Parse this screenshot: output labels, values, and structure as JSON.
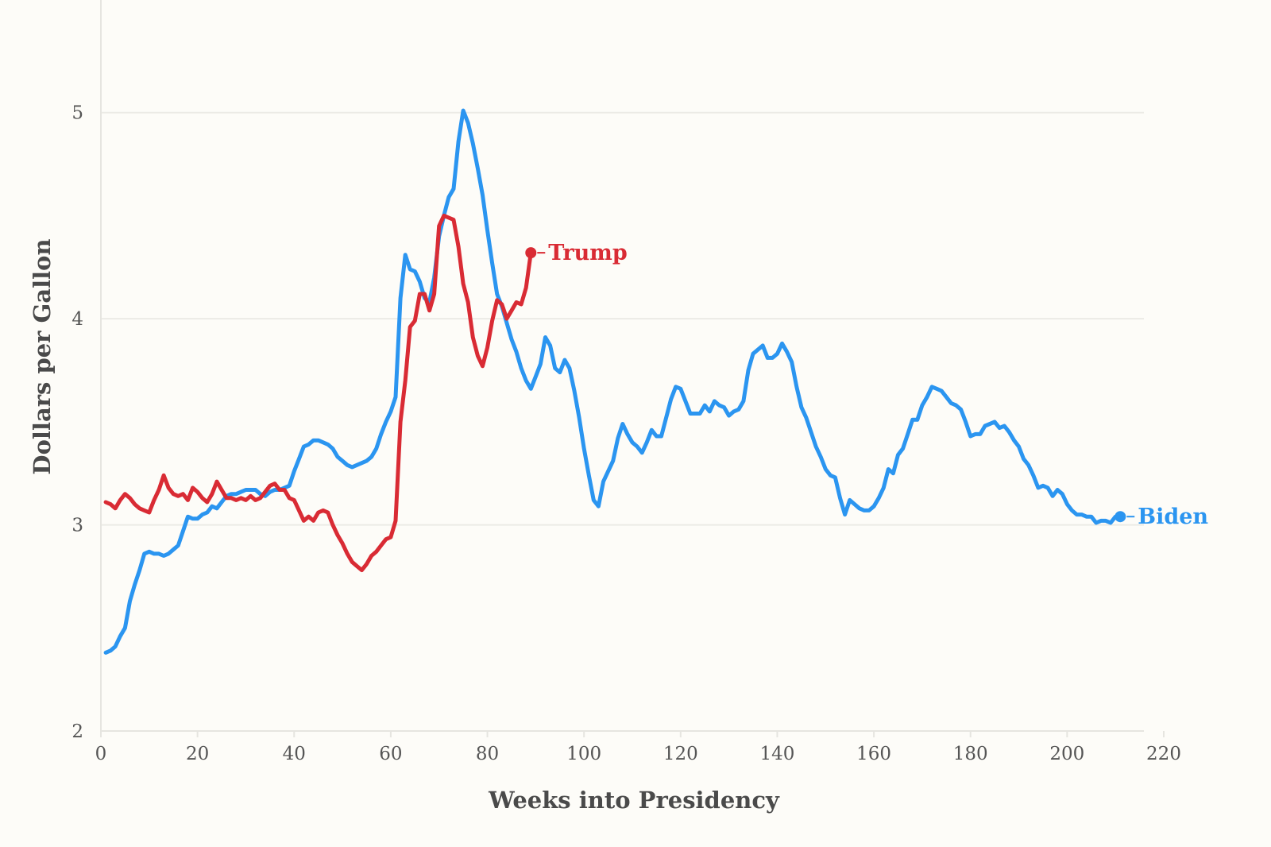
{
  "chart_data": {
    "type": "line",
    "title": "",
    "xlabel": "Weeks into Presidency",
    "ylabel": "Dollars per Gallon",
    "xlim": [
      0,
      220
    ],
    "ylim": [
      2,
      5.5
    ],
    "xticks": [
      0,
      20,
      40,
      60,
      80,
      100,
      120,
      140,
      160,
      180,
      200,
      220
    ],
    "yticks": [
      2,
      3,
      4,
      5
    ],
    "grid": "horizontal",
    "legend": "direct-labels",
    "series": [
      {
        "name": "Trump",
        "color": "#d92b34",
        "points": [
          [
            1,
            3.11
          ],
          [
            2,
            3.1
          ],
          [
            3,
            3.08
          ],
          [
            4,
            3.12
          ],
          [
            5,
            3.15
          ],
          [
            6,
            3.13
          ],
          [
            7,
            3.1
          ],
          [
            8,
            3.08
          ],
          [
            9,
            3.07
          ],
          [
            10,
            3.06
          ],
          [
            11,
            3.12
          ],
          [
            12,
            3.17
          ],
          [
            13,
            3.24
          ],
          [
            14,
            3.18
          ],
          [
            15,
            3.15
          ],
          [
            16,
            3.14
          ],
          [
            17,
            3.15
          ],
          [
            18,
            3.12
          ],
          [
            19,
            3.18
          ],
          [
            20,
            3.16
          ],
          [
            21,
            3.13
          ],
          [
            22,
            3.11
          ],
          [
            23,
            3.15
          ],
          [
            24,
            3.21
          ],
          [
            25,
            3.17
          ],
          [
            26,
            3.13
          ],
          [
            27,
            3.13
          ],
          [
            28,
            3.12
          ],
          [
            29,
            3.13
          ],
          [
            30,
            3.12
          ],
          [
            31,
            3.14
          ],
          [
            32,
            3.12
          ],
          [
            33,
            3.13
          ],
          [
            34,
            3.16
          ],
          [
            35,
            3.19
          ],
          [
            36,
            3.2
          ],
          [
            37,
            3.17
          ],
          [
            38,
            3.17
          ],
          [
            39,
            3.13
          ],
          [
            40,
            3.12
          ],
          [
            41,
            3.07
          ],
          [
            42,
            3.02
          ],
          [
            43,
            3.04
          ],
          [
            44,
            3.02
          ],
          [
            45,
            3.06
          ],
          [
            46,
            3.07
          ],
          [
            47,
            3.06
          ],
          [
            48,
            3.0
          ],
          [
            49,
            2.95
          ],
          [
            50,
            2.91
          ],
          [
            51,
            2.86
          ],
          [
            52,
            2.82
          ],
          [
            53,
            2.8
          ],
          [
            54,
            2.78
          ],
          [
            55,
            2.81
          ],
          [
            56,
            2.85
          ],
          [
            57,
            2.87
          ],
          [
            58,
            2.9
          ],
          [
            59,
            2.93
          ],
          [
            60,
            2.94
          ],
          [
            61,
            3.02
          ],
          [
            62,
            3.5
          ],
          [
            63,
            3.7
          ],
          [
            64,
            3.96
          ],
          [
            65,
            3.99
          ],
          [
            66,
            4.12
          ],
          [
            67,
            4.12
          ],
          [
            68,
            4.04
          ],
          [
            69,
            4.12
          ],
          [
            70,
            4.45
          ],
          [
            71,
            4.5
          ],
          [
            72,
            4.49
          ],
          [
            73,
            4.48
          ],
          [
            74,
            4.35
          ],
          [
            75,
            4.17
          ],
          [
            76,
            4.08
          ],
          [
            77,
            3.91
          ],
          [
            78,
            3.82
          ],
          [
            79,
            3.77
          ],
          [
            80,
            3.86
          ],
          [
            81,
            3.99
          ],
          [
            82,
            4.09
          ],
          [
            83,
            4.07
          ],
          [
            84,
            4.0
          ],
          [
            85,
            4.04
          ],
          [
            86,
            4.08
          ],
          [
            87,
            4.07
          ],
          [
            88,
            4.15
          ],
          [
            89,
            4.32
          ]
        ]
      },
      {
        "name": "Biden",
        "color": "#2b95f0",
        "points": [
          [
            1,
            2.38
          ],
          [
            2,
            2.39
          ],
          [
            3,
            2.41
          ],
          [
            4,
            2.46
          ],
          [
            5,
            2.5
          ],
          [
            6,
            2.63
          ],
          [
            7,
            2.71
          ],
          [
            8,
            2.78
          ],
          [
            9,
            2.86
          ],
          [
            10,
            2.87
          ],
          [
            11,
            2.86
          ],
          [
            12,
            2.86
          ],
          [
            13,
            2.85
          ],
          [
            14,
            2.86
          ],
          [
            15,
            2.88
          ],
          [
            16,
            2.9
          ],
          [
            17,
            2.97
          ],
          [
            18,
            3.04
          ],
          [
            19,
            3.03
          ],
          [
            20,
            3.03
          ],
          [
            21,
            3.05
          ],
          [
            22,
            3.06
          ],
          [
            23,
            3.09
          ],
          [
            24,
            3.08
          ],
          [
            25,
            3.11
          ],
          [
            26,
            3.14
          ],
          [
            27,
            3.15
          ],
          [
            28,
            3.15
          ],
          [
            29,
            3.16
          ],
          [
            30,
            3.17
          ],
          [
            31,
            3.17
          ],
          [
            32,
            3.17
          ],
          [
            33,
            3.15
          ],
          [
            34,
            3.14
          ],
          [
            35,
            3.16
          ],
          [
            36,
            3.17
          ],
          [
            37,
            3.17
          ],
          [
            38,
            3.18
          ],
          [
            39,
            3.19
          ],
          [
            40,
            3.26
          ],
          [
            41,
            3.32
          ],
          [
            42,
            3.38
          ],
          [
            43,
            3.39
          ],
          [
            44,
            3.41
          ],
          [
            45,
            3.41
          ],
          [
            46,
            3.4
          ],
          [
            47,
            3.39
          ],
          [
            48,
            3.37
          ],
          [
            49,
            3.33
          ],
          [
            50,
            3.31
          ],
          [
            51,
            3.29
          ],
          [
            52,
            3.28
          ],
          [
            53,
            3.29
          ],
          [
            54,
            3.3
          ],
          [
            55,
            3.31
          ],
          [
            56,
            3.33
          ],
          [
            57,
            3.37
          ],
          [
            58,
            3.44
          ],
          [
            59,
            3.5
          ],
          [
            60,
            3.55
          ],
          [
            61,
            3.62
          ],
          [
            62,
            4.1
          ],
          [
            63,
            4.31
          ],
          [
            64,
            4.24
          ],
          [
            65,
            4.23
          ],
          [
            66,
            4.18
          ],
          [
            67,
            4.1
          ],
          [
            68,
            4.08
          ],
          [
            69,
            4.2
          ],
          [
            70,
            4.4
          ],
          [
            71,
            4.5
          ],
          [
            72,
            4.59
          ],
          [
            73,
            4.63
          ],
          [
            74,
            4.86
          ],
          [
            75,
            5.01
          ],
          [
            76,
            4.95
          ],
          [
            77,
            4.85
          ],
          [
            78,
            4.73
          ],
          [
            79,
            4.6
          ],
          [
            80,
            4.43
          ],
          [
            81,
            4.27
          ],
          [
            82,
            4.12
          ],
          [
            83,
            4.06
          ],
          [
            84,
            3.98
          ],
          [
            85,
            3.9
          ],
          [
            86,
            3.84
          ],
          [
            87,
            3.76
          ],
          [
            88,
            3.7
          ],
          [
            89,
            3.66
          ],
          [
            90,
            3.72
          ],
          [
            91,
            3.78
          ],
          [
            92,
            3.91
          ],
          [
            93,
            3.87
          ],
          [
            94,
            3.76
          ],
          [
            95,
            3.74
          ],
          [
            96,
            3.8
          ],
          [
            97,
            3.76
          ],
          [
            98,
            3.65
          ],
          [
            99,
            3.52
          ],
          [
            100,
            3.37
          ],
          [
            101,
            3.24
          ],
          [
            102,
            3.12
          ],
          [
            103,
            3.09
          ],
          [
            104,
            3.21
          ],
          [
            105,
            3.26
          ],
          [
            106,
            3.31
          ],
          [
            107,
            3.42
          ],
          [
            108,
            3.49
          ],
          [
            109,
            3.44
          ],
          [
            110,
            3.4
          ],
          [
            111,
            3.38
          ],
          [
            112,
            3.35
          ],
          [
            113,
            3.4
          ],
          [
            114,
            3.46
          ],
          [
            115,
            3.43
          ],
          [
            116,
            3.43
          ],
          [
            117,
            3.52
          ],
          [
            118,
            3.61
          ],
          [
            119,
            3.67
          ],
          [
            120,
            3.66
          ],
          [
            121,
            3.6
          ],
          [
            122,
            3.54
          ],
          [
            123,
            3.54
          ],
          [
            124,
            3.54
          ],
          [
            125,
            3.58
          ],
          [
            126,
            3.55
          ],
          [
            127,
            3.6
          ],
          [
            128,
            3.58
          ],
          [
            129,
            3.57
          ],
          [
            130,
            3.53
          ],
          [
            131,
            3.55
          ],
          [
            132,
            3.56
          ],
          [
            133,
            3.6
          ],
          [
            134,
            3.75
          ],
          [
            135,
            3.83
          ],
          [
            136,
            3.85
          ],
          [
            137,
            3.87
          ],
          [
            138,
            3.81
          ],
          [
            139,
            3.81
          ],
          [
            140,
            3.83
          ],
          [
            141,
            3.88
          ],
          [
            142,
            3.84
          ],
          [
            143,
            3.79
          ],
          [
            144,
            3.67
          ],
          [
            145,
            3.57
          ],
          [
            146,
            3.52
          ],
          [
            147,
            3.45
          ],
          [
            148,
            3.38
          ],
          [
            149,
            3.33
          ],
          [
            150,
            3.27
          ],
          [
            151,
            3.24
          ],
          [
            152,
            3.23
          ],
          [
            153,
            3.13
          ],
          [
            154,
            3.05
          ],
          [
            155,
            3.12
          ],
          [
            156,
            3.1
          ],
          [
            157,
            3.08
          ],
          [
            158,
            3.07
          ],
          [
            159,
            3.07
          ],
          [
            160,
            3.09
          ],
          [
            161,
            3.13
          ],
          [
            162,
            3.18
          ],
          [
            163,
            3.27
          ],
          [
            164,
            3.25
          ],
          [
            165,
            3.34
          ],
          [
            166,
            3.37
          ],
          [
            167,
            3.44
          ],
          [
            168,
            3.51
          ],
          [
            169,
            3.51
          ],
          [
            170,
            3.58
          ],
          [
            171,
            3.62
          ],
          [
            172,
            3.67
          ],
          [
            173,
            3.66
          ],
          [
            174,
            3.65
          ],
          [
            175,
            3.62
          ],
          [
            176,
            3.59
          ],
          [
            177,
            3.58
          ],
          [
            178,
            3.56
          ],
          [
            179,
            3.5
          ],
          [
            180,
            3.43
          ],
          [
            181,
            3.44
          ],
          [
            182,
            3.44
          ],
          [
            183,
            3.48
          ],
          [
            184,
            3.49
          ],
          [
            185,
            3.5
          ],
          [
            186,
            3.47
          ],
          [
            187,
            3.48
          ],
          [
            188,
            3.45
          ],
          [
            189,
            3.41
          ],
          [
            190,
            3.38
          ],
          [
            191,
            3.32
          ],
          [
            192,
            3.29
          ],
          [
            193,
            3.24
          ],
          [
            194,
            3.18
          ],
          [
            195,
            3.19
          ],
          [
            196,
            3.18
          ],
          [
            197,
            3.14
          ],
          [
            198,
            3.17
          ],
          [
            199,
            3.15
          ],
          [
            200,
            3.1
          ],
          [
            201,
            3.07
          ],
          [
            202,
            3.05
          ],
          [
            203,
            3.05
          ],
          [
            204,
            3.04
          ],
          [
            205,
            3.04
          ],
          [
            206,
            3.01
          ],
          [
            207,
            3.02
          ],
          [
            208,
            3.02
          ],
          [
            209,
            3.01
          ],
          [
            210,
            3.04
          ],
          [
            211,
            3.04
          ]
        ]
      }
    ]
  }
}
